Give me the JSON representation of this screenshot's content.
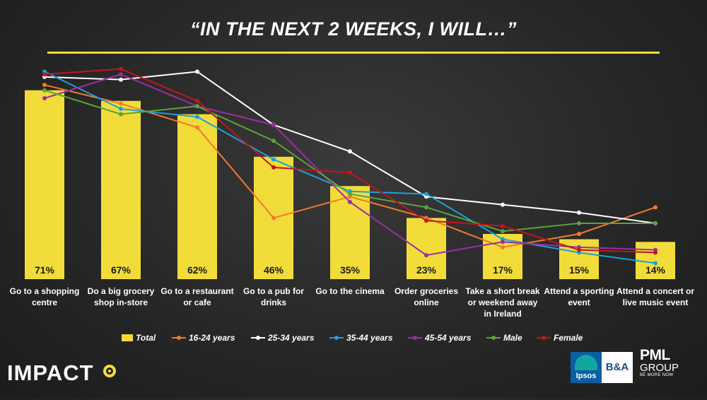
{
  "title": "“IN THE NEXT 2 WEEKS, I WILL…”",
  "colors": {
    "accent": "#f2dc3a",
    "background": "#262626"
  },
  "chart_data": {
    "type": "bar",
    "categories": [
      [
        "Go to a shopping",
        "centre"
      ],
      [
        "Do a big grocery",
        "shop in-store"
      ],
      [
        "Go to a restaurant",
        "or cafe"
      ],
      [
        "Go to a pub for",
        "drinks"
      ],
      [
        "Go to the cinema"
      ],
      [
        "Order groceries",
        "online"
      ],
      [
        "Take a short break",
        "or weekend away",
        "in Ireland"
      ],
      [
        "Attend a sporting",
        "event"
      ],
      [
        "Attend a concert or",
        "live music event"
      ]
    ],
    "ylim": [
      0,
      85
    ],
    "bar_series": {
      "name": "Total",
      "color": "#f2dc3a",
      "values": [
        71,
        67,
        62,
        46,
        35,
        23,
        17,
        15,
        14
      ],
      "labels": [
        "71%",
        "67%",
        "62%",
        "46%",
        "35%",
        "23%",
        "17%",
        "15%",
        "14%"
      ]
    },
    "series": [
      {
        "name": "16-24 years",
        "color": "#ef7b2c",
        "values": [
          73,
          66,
          57,
          23,
          31,
          23,
          12,
          17,
          27
        ]
      },
      {
        "name": "25-34 years",
        "color": "#ffffff",
        "values": [
          76,
          75,
          78,
          58,
          48,
          31,
          28,
          25,
          21
        ]
      },
      {
        "name": "35-44 years",
        "color": "#1ba1d8",
        "values": [
          78,
          64,
          61,
          45,
          33,
          32,
          15,
          10,
          6
        ]
      },
      {
        "name": "45-54 years",
        "color": "#9b2fa0",
        "values": [
          68,
          77,
          65,
          58,
          29,
          9,
          14,
          12,
          11
        ]
      },
      {
        "name": "Male",
        "color": "#5ca33a",
        "values": [
          71,
          62,
          65,
          52,
          32,
          27,
          18,
          21,
          21
        ]
      },
      {
        "name": "Female",
        "color": "#c0161d",
        "values": [
          77,
          79,
          67,
          42,
          40,
          22,
          20,
          11,
          10
        ]
      }
    ],
    "legend_position": "bottom",
    "grid": false
  },
  "branding": {
    "impact": "IMPACT",
    "ipsos": "Ipsos",
    "ba": "B&A",
    "pml": "PML",
    "group": "GROUP",
    "tagline": "BE MORE NOW"
  }
}
